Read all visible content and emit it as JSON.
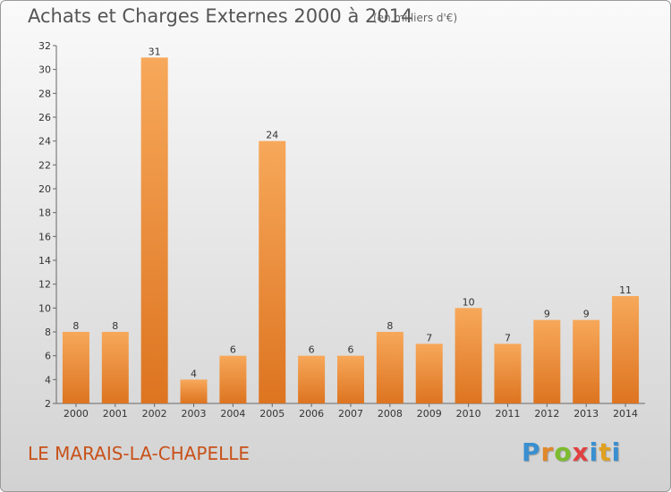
{
  "header": {
    "title": "Achats et Charges Externes 2000 à 2014",
    "unit": "(en milliers d'€)"
  },
  "footer": {
    "commune": "LE MARAIS-LA-CHAPELLE",
    "logo_text": "Proxiti"
  },
  "colors": {
    "bar_top": "#f7a85a",
    "bar_bottom": "#dd7420",
    "commune_text": "#c8511a"
  },
  "chart_data": {
    "type": "bar",
    "title": "Achats et Charges Externes 2000 à 2014",
    "subtitle": "(en milliers d'€)",
    "categories": [
      "2000",
      "2001",
      "2002",
      "2003",
      "2004",
      "2005",
      "2006",
      "2007",
      "2008",
      "2009",
      "2010",
      "2011",
      "2012",
      "2013",
      "2014"
    ],
    "values": [
      8,
      8,
      31,
      4,
      6,
      24,
      6,
      6,
      8,
      7,
      10,
      7,
      9,
      9,
      11
    ],
    "ylim": [
      2,
      32
    ],
    "yticks": [
      2,
      4,
      6,
      8,
      10,
      12,
      14,
      16,
      18,
      20,
      22,
      24,
      26,
      28,
      30,
      32
    ],
    "xlabel": "",
    "ylabel": "",
    "grid": false,
    "legend": "none"
  }
}
